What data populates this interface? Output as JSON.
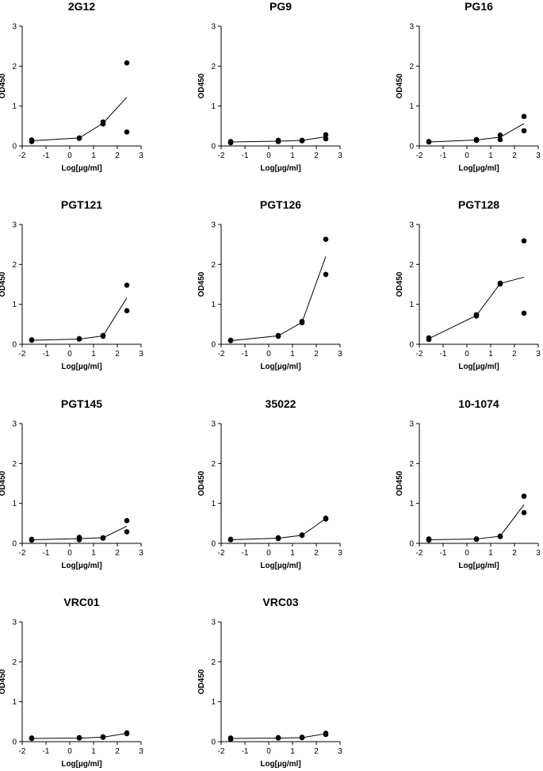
{
  "chart_data": [
    {
      "type": "scatter",
      "title": "2G12",
      "xlabel": "Log[µg/ml]",
      "ylabel": "OD450",
      "xlim": [
        -2,
        3
      ],
      "ylim": [
        0,
        3
      ],
      "xticks": [
        -2,
        -1,
        0,
        1,
        2,
        3
      ],
      "yticks": [
        0,
        1,
        2,
        3
      ],
      "points": [
        [
          -1.6,
          0.15
        ],
        [
          -1.6,
          0.11
        ],
        [
          0.4,
          0.2
        ],
        [
          0.4,
          0.19
        ],
        [
          1.4,
          0.6
        ],
        [
          1.4,
          0.55
        ],
        [
          2.4,
          2.08
        ],
        [
          2.4,
          0.35
        ]
      ],
      "fit": [
        [
          -1.6,
          0.13
        ],
        [
          0.4,
          0.2
        ],
        [
          1.4,
          0.57
        ],
        [
          2.4,
          1.22
        ]
      ]
    },
    {
      "type": "scatter",
      "title": "PG9",
      "xlabel": "Log[µg/ml]",
      "ylabel": "OD450",
      "xlim": [
        -2,
        3
      ],
      "ylim": [
        0,
        3
      ],
      "xticks": [
        -2,
        -1,
        0,
        1,
        2,
        3
      ],
      "yticks": [
        0,
        1,
        2,
        3
      ],
      "points": [
        [
          -1.6,
          0.11
        ],
        [
          -1.6,
          0.08
        ],
        [
          0.4,
          0.14
        ],
        [
          0.4,
          0.11
        ],
        [
          1.4,
          0.14
        ],
        [
          1.4,
          0.13
        ],
        [
          2.4,
          0.28
        ],
        [
          2.4,
          0.18
        ]
      ],
      "fit": [
        [
          -1.6,
          0.1
        ],
        [
          0.4,
          0.12
        ],
        [
          1.4,
          0.14
        ],
        [
          2.4,
          0.23
        ]
      ]
    },
    {
      "type": "scatter",
      "title": "PG16",
      "xlabel": "Log[µg/ml]",
      "ylabel": "OD450",
      "xlim": [
        -2,
        3
      ],
      "ylim": [
        0,
        3
      ],
      "xticks": [
        -2,
        -1,
        0,
        1,
        2,
        3
      ],
      "yticks": [
        0,
        1,
        2,
        3
      ],
      "points": [
        [
          -1.6,
          0.11
        ],
        [
          -1.6,
          0.1
        ],
        [
          0.4,
          0.16
        ],
        [
          0.4,
          0.14
        ],
        [
          1.4,
          0.27
        ],
        [
          1.4,
          0.16
        ],
        [
          2.4,
          0.74
        ],
        [
          2.4,
          0.38
        ]
      ],
      "fit": [
        [
          -1.6,
          0.1
        ],
        [
          0.4,
          0.15
        ],
        [
          1.4,
          0.22
        ],
        [
          2.4,
          0.56
        ]
      ]
    },
    {
      "type": "scatter",
      "title": "PGT121",
      "xlabel": "Log[µg/ml]",
      "ylabel": "OD450",
      "xlim": [
        -2,
        3
      ],
      "ylim": [
        0,
        3
      ],
      "xticks": [
        -2,
        -1,
        0,
        1,
        2,
        3
      ],
      "yticks": [
        0,
        1,
        2,
        3
      ],
      "points": [
        [
          -1.6,
          0.11
        ],
        [
          -1.6,
          0.1
        ],
        [
          0.4,
          0.14
        ],
        [
          0.4,
          0.13
        ],
        [
          1.4,
          0.22
        ],
        [
          1.4,
          0.2
        ],
        [
          2.4,
          1.48
        ],
        [
          2.4,
          0.84
        ]
      ],
      "fit": [
        [
          -1.6,
          0.1
        ],
        [
          0.4,
          0.13
        ],
        [
          1.4,
          0.21
        ],
        [
          2.4,
          1.16
        ]
      ]
    },
    {
      "type": "scatter",
      "title": "PGT126",
      "xlabel": "Log[µg/ml]",
      "ylabel": "OD450",
      "xlim": [
        -2,
        3
      ],
      "ylim": [
        0,
        3
      ],
      "xticks": [
        -2,
        -1,
        0,
        1,
        2,
        3
      ],
      "yticks": [
        0,
        1,
        2,
        3
      ],
      "points": [
        [
          -1.6,
          0.1
        ],
        [
          -1.6,
          0.09
        ],
        [
          0.4,
          0.22
        ],
        [
          0.4,
          0.2
        ],
        [
          1.4,
          0.57
        ],
        [
          1.4,
          0.54
        ],
        [
          2.4,
          2.63
        ],
        [
          2.4,
          1.75
        ]
      ],
      "fit": [
        [
          -1.6,
          0.09
        ],
        [
          0.4,
          0.21
        ],
        [
          1.4,
          0.55
        ],
        [
          2.4,
          2.2
        ]
      ]
    },
    {
      "type": "scatter",
      "title": "PGT128",
      "xlabel": "Log[µg/ml]",
      "ylabel": "OD450",
      "xlim": [
        -2,
        3
      ],
      "ylim": [
        0,
        3
      ],
      "xticks": [
        -2,
        -1,
        0,
        1,
        2,
        3
      ],
      "yticks": [
        0,
        1,
        2,
        3
      ],
      "points": [
        [
          -1.6,
          0.16
        ],
        [
          -1.6,
          0.12
        ],
        [
          0.4,
          0.74
        ],
        [
          0.4,
          0.71
        ],
        [
          1.4,
          1.53
        ],
        [
          1.4,
          1.51
        ],
        [
          2.4,
          2.59
        ],
        [
          2.4,
          0.78
        ]
      ],
      "fit": [
        [
          -1.6,
          0.14
        ],
        [
          0.4,
          0.72
        ],
        [
          1.4,
          1.52
        ],
        [
          2.4,
          1.68
        ]
      ]
    },
    {
      "type": "scatter",
      "title": "PGT145",
      "xlabel": "Log[µg/ml]",
      "ylabel": "OD450",
      "xlim": [
        -2,
        3
      ],
      "ylim": [
        0,
        3
      ],
      "xticks": [
        -2,
        -1,
        0,
        1,
        2,
        3
      ],
      "yticks": [
        0,
        1,
        2,
        3
      ],
      "points": [
        [
          -1.6,
          0.1
        ],
        [
          -1.6,
          0.08
        ],
        [
          0.4,
          0.15
        ],
        [
          0.4,
          0.09
        ],
        [
          1.4,
          0.14
        ],
        [
          1.4,
          0.13
        ],
        [
          2.4,
          0.57
        ],
        [
          2.4,
          0.29
        ]
      ],
      "fit": [
        [
          -1.6,
          0.09
        ],
        [
          0.4,
          0.12
        ],
        [
          1.4,
          0.14
        ],
        [
          2.4,
          0.43
        ]
      ]
    },
    {
      "type": "scatter",
      "title": "35022",
      "xlabel": "Log[µg/ml]",
      "ylabel": "OD450",
      "xlim": [
        -2,
        3
      ],
      "ylim": [
        0,
        3
      ],
      "xticks": [
        -2,
        -1,
        0,
        1,
        2,
        3
      ],
      "yticks": [
        0,
        1,
        2,
        3
      ],
      "points": [
        [
          -1.6,
          0.1
        ],
        [
          -1.6,
          0.09
        ],
        [
          0.4,
          0.14
        ],
        [
          0.4,
          0.12
        ],
        [
          1.4,
          0.21
        ],
        [
          1.4,
          0.2
        ],
        [
          2.4,
          0.63
        ],
        [
          2.4,
          0.61
        ]
      ],
      "fit": [
        [
          -1.6,
          0.09
        ],
        [
          0.4,
          0.13
        ],
        [
          1.4,
          0.2
        ],
        [
          2.4,
          0.62
        ]
      ]
    },
    {
      "type": "scatter",
      "title": "10-1074",
      "xlabel": "Log[µg/ml]",
      "ylabel": "OD450",
      "xlim": [
        -2,
        3
      ],
      "ylim": [
        0,
        3
      ],
      "xticks": [
        -2,
        -1,
        0,
        1,
        2,
        3
      ],
      "yticks": [
        0,
        1,
        2,
        3
      ],
      "points": [
        [
          -1.6,
          0.11
        ],
        [
          -1.6,
          0.08
        ],
        [
          0.4,
          0.11
        ],
        [
          0.4,
          0.1
        ],
        [
          1.4,
          0.18
        ],
        [
          1.4,
          0.17
        ],
        [
          2.4,
          1.18
        ],
        [
          2.4,
          0.77
        ]
      ],
      "fit": [
        [
          -1.6,
          0.09
        ],
        [
          0.4,
          0.11
        ],
        [
          1.4,
          0.18
        ],
        [
          2.4,
          0.97
        ]
      ]
    },
    {
      "type": "scatter",
      "title": "VRC01",
      "xlabel": "Log[µg/ml]",
      "ylabel": "OD450",
      "xlim": [
        -2,
        3
      ],
      "ylim": [
        0,
        3
      ],
      "xticks": [
        -2,
        -1,
        0,
        1,
        2,
        3
      ],
      "yticks": [
        0,
        1,
        2,
        3
      ],
      "points": [
        [
          -1.6,
          0.09
        ],
        [
          -1.6,
          0.08
        ],
        [
          0.4,
          0.1
        ],
        [
          0.4,
          0.09
        ],
        [
          1.4,
          0.12
        ],
        [
          1.4,
          0.11
        ],
        [
          2.4,
          0.22
        ],
        [
          2.4,
          0.2
        ]
      ],
      "fit": [
        [
          -1.6,
          0.08
        ],
        [
          0.4,
          0.09
        ],
        [
          1.4,
          0.11
        ],
        [
          2.4,
          0.21
        ]
      ]
    },
    {
      "type": "scatter",
      "title": "VRC03",
      "xlabel": "Log[µg/ml]",
      "ylabel": "OD450",
      "xlim": [
        -2,
        3
      ],
      "ylim": [
        0,
        3
      ],
      "xticks": [
        -2,
        -1,
        0,
        1,
        2,
        3
      ],
      "yticks": [
        0,
        1,
        2,
        3
      ],
      "points": [
        [
          -1.6,
          0.09
        ],
        [
          -1.6,
          0.06
        ],
        [
          0.4,
          0.1
        ],
        [
          0.4,
          0.09
        ],
        [
          1.4,
          0.11
        ],
        [
          1.4,
          0.1
        ],
        [
          2.4,
          0.21
        ],
        [
          2.4,
          0.18
        ]
      ],
      "fit": [
        [
          -1.6,
          0.08
        ],
        [
          0.4,
          0.09
        ],
        [
          1.4,
          0.1
        ],
        [
          2.4,
          0.2
        ]
      ]
    }
  ]
}
